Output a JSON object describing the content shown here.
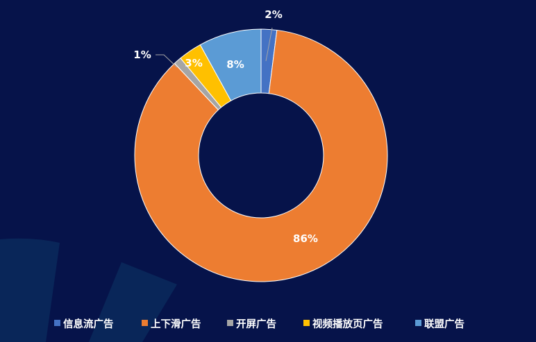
{
  "colors": {
    "background": "#06134a",
    "decor": "#0b2a5c"
  },
  "chart_data": {
    "type": "pie",
    "variant": "donut",
    "title": "",
    "categories": [
      "信息流广告",
      "上下滑广告",
      "开屏广告",
      "视频播放页广告",
      "联盟广告"
    ],
    "values": [
      2,
      86,
      1,
      3,
      8
    ],
    "data_labels": [
      "2%",
      "86%",
      "1%",
      "3%",
      "8%"
    ],
    "colors": [
      "#4472c4",
      "#ed7d31",
      "#a5a5a5",
      "#ffc000",
      "#5b9bd5"
    ],
    "legend_placement": "bottom",
    "start_angle": "12 o'clock",
    "direction": "clockwise"
  }
}
